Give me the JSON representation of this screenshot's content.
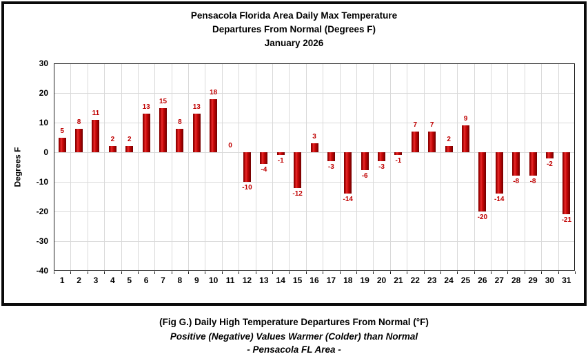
{
  "title": {
    "line1": "Pensacola Florida Area Daily Max Temperature",
    "line2": "Departures From Normal (Degrees F)",
    "line3": "January 2026"
  },
  "chart_data": {
    "type": "bar",
    "title": "Pensacola Florida Area Daily Max Temperature Departures From Normal (Degrees F) January 2026",
    "categories": [
      1,
      2,
      3,
      4,
      5,
      6,
      7,
      8,
      9,
      10,
      11,
      12,
      13,
      14,
      15,
      16,
      17,
      18,
      19,
      20,
      21,
      22,
      23,
      24,
      25,
      26,
      27,
      28,
      29,
      30,
      31
    ],
    "values": [
      5,
      8,
      11,
      2,
      2,
      13,
      15,
      8,
      13,
      18,
      0,
      -10,
      -4,
      -1,
      -12,
      3,
      -3,
      -14,
      -6,
      -3,
      -1,
      7,
      7,
      2,
      9,
      -20,
      -14,
      -8,
      -8,
      -2,
      -21
    ],
    "xlabel": "",
    "ylabel": "Degrees F",
    "ylim": [
      -40,
      30
    ],
    "ytick_step": 10,
    "grid": true,
    "legend": null,
    "bar_color": "#c00000",
    "label_color": "#c00000"
  },
  "caption": {
    "line1": "(Fig G.) Daily High Temperature Departures From Normal (°F)",
    "line2": "Positive (Negative) Values Warmer (Colder) than Normal",
    "line3": "- Pensacola FL Area -"
  }
}
